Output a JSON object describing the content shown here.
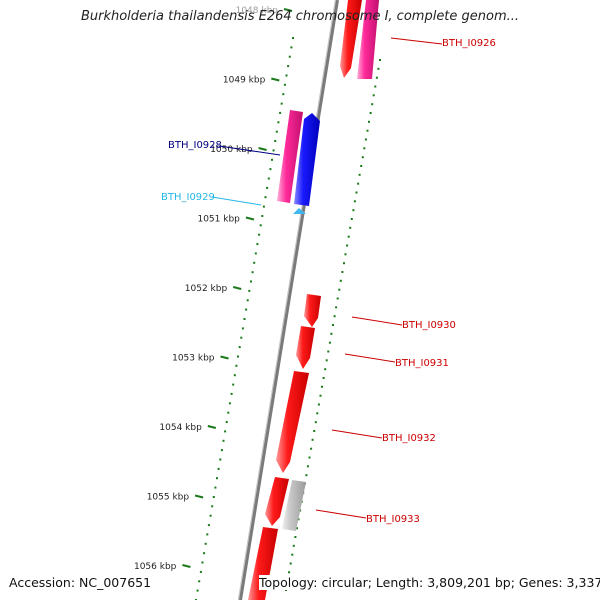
{
  "title": "Burkholderia thailandensis E264 chromosome I, complete genom...",
  "footer": {
    "accession": "Accession: NC_007651",
    "topology": "Topology: circular; Length: 3,809,201 bp; Genes: 3,337"
  },
  "ticks": [
    "1048 kbp",
    "1049 kbp",
    "1050 kbp",
    "1051 kbp",
    "1052 kbp",
    "1053 kbp",
    "1054 kbp",
    "1055 kbp",
    "1056 kbp"
  ],
  "colors": {
    "backbone": "#7a7a7a",
    "dots": "#1a7a1a",
    "cds_red": "#ff0000",
    "cds_magenta": "#ff1493",
    "cds_blue": "#0000ff",
    "cds_grey": "#bdbdbd",
    "label_red": "#cc0000",
    "label_navy": "#000080",
    "label_cyan": "#22b8e8"
  },
  "genes": [
    {
      "name": "BTH_I0926",
      "label_color": "#cc0000"
    },
    {
      "name": "BTH_I0928",
      "label_color": "#000080"
    },
    {
      "name": "BTH_I0929",
      "label_color": "#22b8e8"
    },
    {
      "name": "BTH_I0930",
      "label_color": "#cc0000"
    },
    {
      "name": "BTH_I0931",
      "label_color": "#cc0000"
    },
    {
      "name": "BTH_I0932",
      "label_color": "#cc0000"
    },
    {
      "name": "BTH_I0933",
      "label_color": "#cc0000"
    }
  ]
}
